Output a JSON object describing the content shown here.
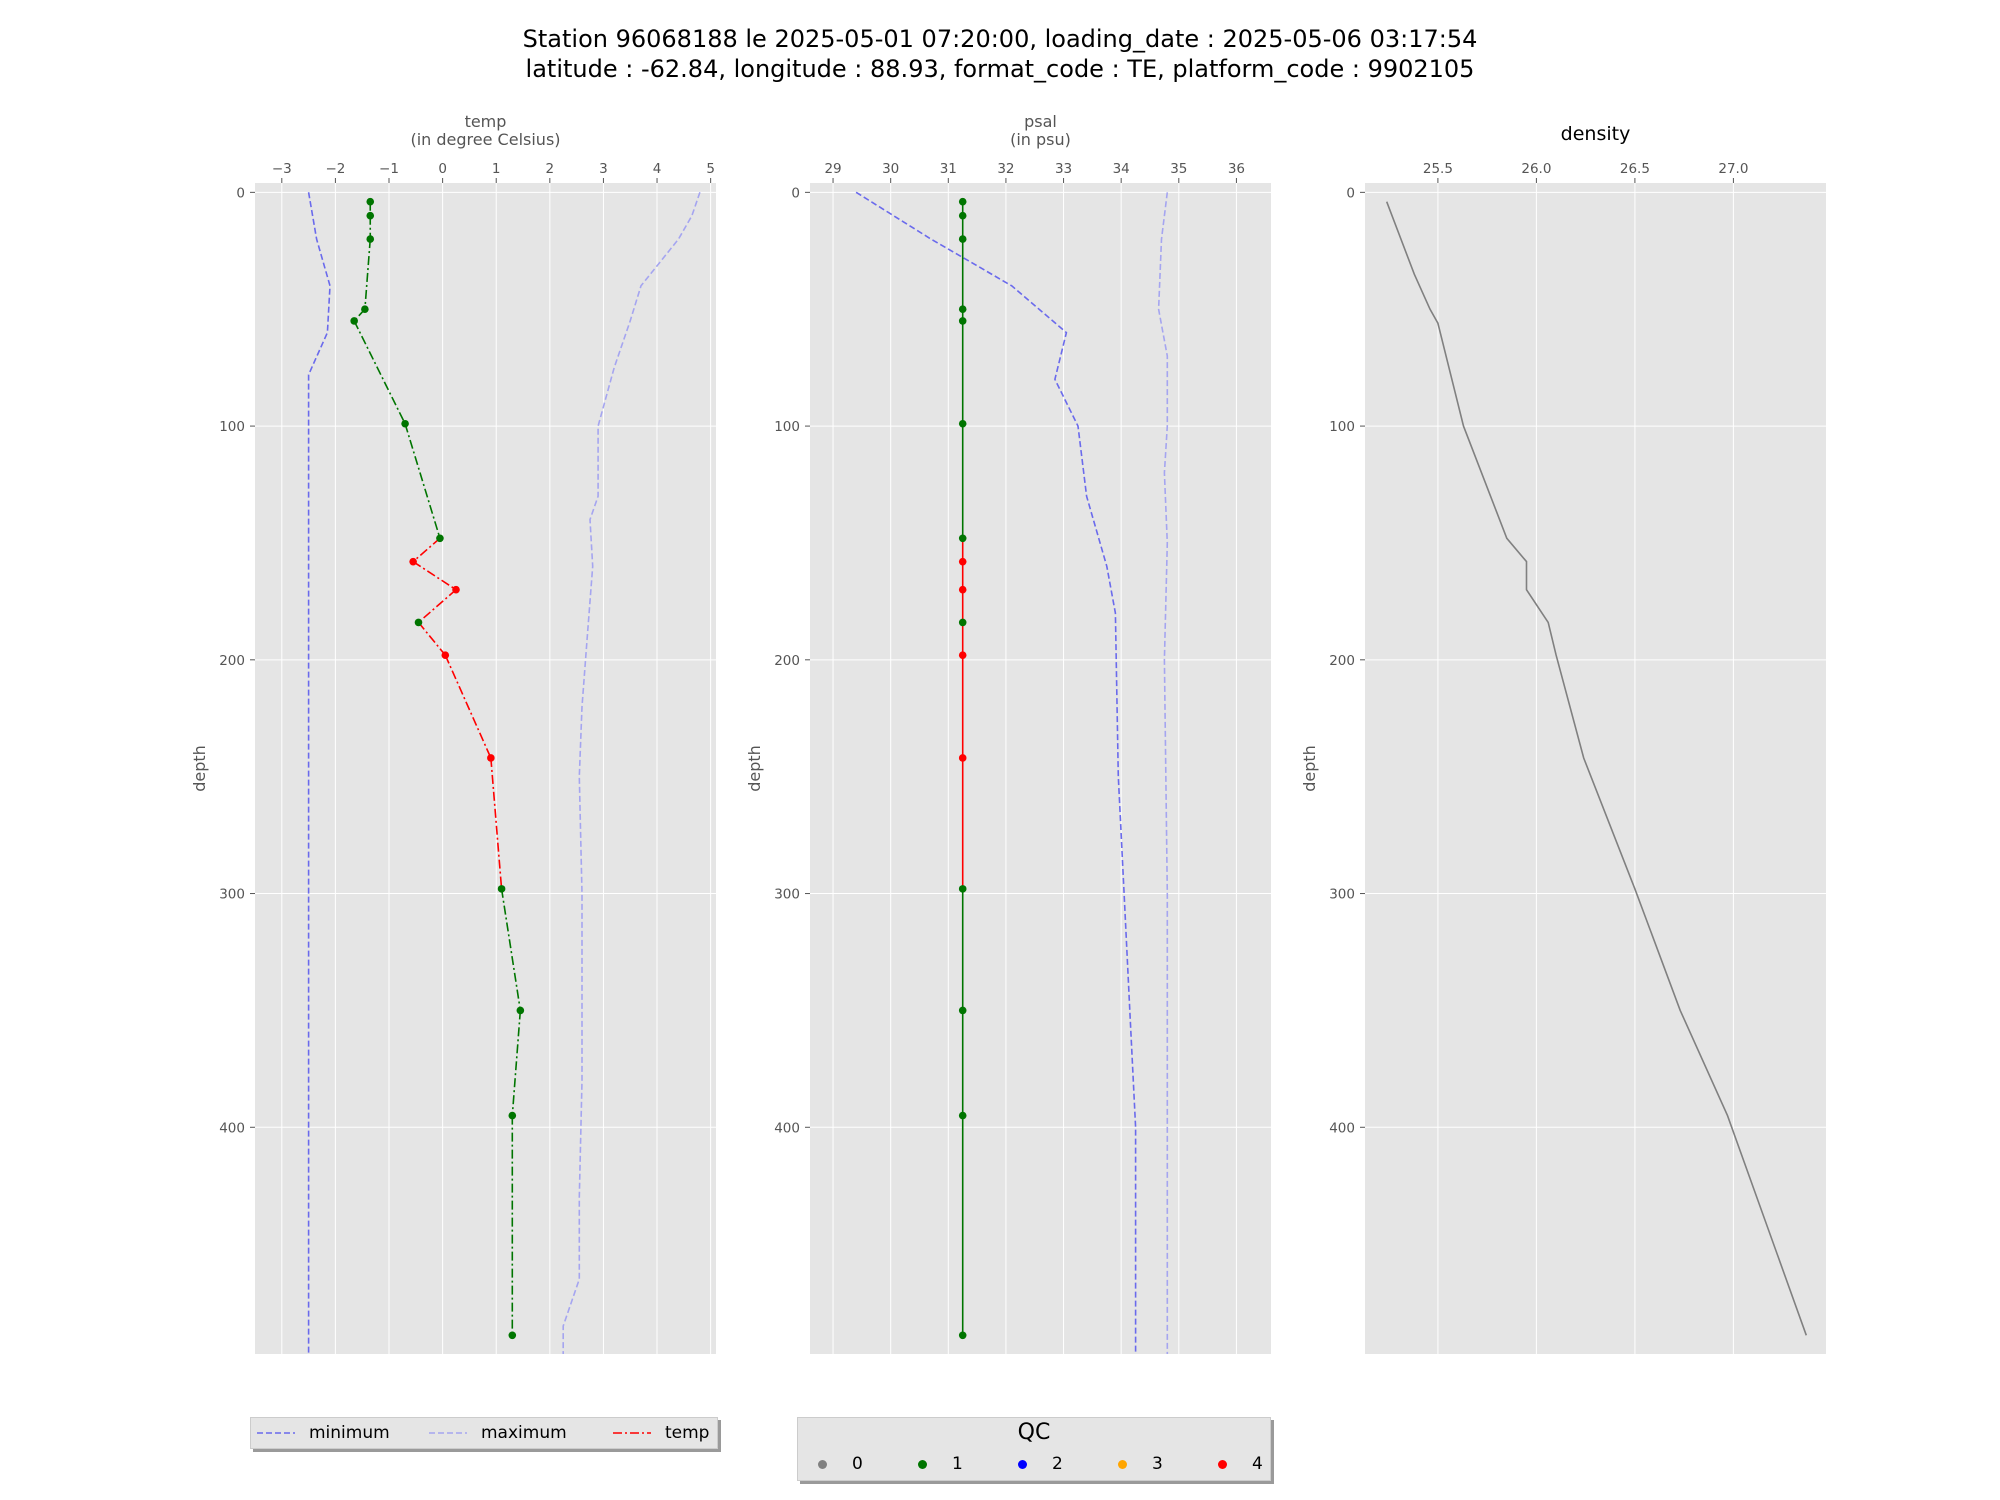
{
  "title": {
    "line1": "Station 96068188 le 2025-05-01 07:20:00, loading_date : 2025-05-06 03:17:54",
    "line2": "latitude : -62.84, longitude : 88.93, format_code : TE, platform_code : 9902105"
  },
  "colors": {
    "background": "#e5e5e5",
    "grid": "#ffffff",
    "minimum": "#6a6aec",
    "maximum": "#a5a5f0",
    "qc_0": "#808080",
    "qc_1": "#007500",
    "qc_2": "#0000ff",
    "qc_3": "#ffa500",
    "qc_4": "#ff0000",
    "density": "#808080"
  },
  "legend_series": {
    "minimum_label": "minimum",
    "maximum_label": "maximum",
    "temp_label": "temp"
  },
  "legend_qc": {
    "title": "QC",
    "items": [
      {
        "label": "0",
        "color": "#808080"
      },
      {
        "label": "1",
        "color": "#007500"
      },
      {
        "label": "2",
        "color": "#0000ff"
      },
      {
        "label": "3",
        "color": "#ffa500"
      },
      {
        "label": "4",
        "color": "#ff0000"
      }
    ]
  },
  "chart_data": [
    {
      "type": "line",
      "xlabel": "temp\n(in degree Celsius)",
      "ylabel": "depth",
      "xlim": [
        -3.5,
        5.1
      ],
      "ylim": [
        497,
        -4
      ],
      "y_inverted": true,
      "xticks": [
        -3,
        -2,
        -1,
        0,
        1,
        2,
        3,
        4,
        5
      ],
      "xtick_labels": [
        "−3",
        "−2",
        "−1",
        "0",
        "1",
        "2",
        "3",
        "4",
        "5"
      ],
      "yticks": [
        0,
        100,
        200,
        300,
        400
      ],
      "yticks_labels": [
        "0",
        "100",
        "200",
        "300",
        "400"
      ],
      "grid": true,
      "series": [
        {
          "name": "minimum",
          "style": "dashed",
          "points": [
            [
              -2.5,
              0
            ],
            [
              -2.35,
              20
            ],
            [
              -2.1,
              40
            ],
            [
              -2.15,
              60
            ],
            [
              -2.5,
              78
            ],
            [
              -2.5,
              100
            ],
            [
              -2.5,
              200
            ],
            [
              -2.5,
              300
            ],
            [
              -2.5,
              400
            ],
            [
              -2.5,
              497
            ]
          ]
        },
        {
          "name": "maximum",
          "style": "dashed",
          "points": [
            [
              4.8,
              0
            ],
            [
              4.65,
              10
            ],
            [
              4.4,
              20
            ],
            [
              3.7,
              40
            ],
            [
              3.5,
              55
            ],
            [
              3.2,
              75
            ],
            [
              2.9,
              100
            ],
            [
              2.9,
              130
            ],
            [
              2.75,
              140
            ],
            [
              2.8,
              160
            ],
            [
              2.7,
              190
            ],
            [
              2.6,
              220
            ],
            [
              2.55,
              250
            ],
            [
              2.6,
              300
            ],
            [
              2.6,
              380
            ],
            [
              2.55,
              430
            ],
            [
              2.55,
              465
            ],
            [
              2.25,
              485
            ],
            [
              2.25,
              497
            ]
          ]
        },
        {
          "name": "temp",
          "style": "dashdot",
          "qc_colored": true,
          "points": [
            [
              -1.35,
              4,
              1
            ],
            [
              -1.35,
              10,
              1
            ],
            [
              -1.35,
              20,
              1
            ],
            [
              -1.45,
              50,
              1
            ],
            [
              -1.65,
              55,
              1
            ],
            [
              -0.7,
              99,
              1
            ],
            [
              -0.05,
              148,
              1
            ],
            [
              -0.55,
              158,
              4
            ],
            [
              0.25,
              170,
              4
            ],
            [
              -0.45,
              184,
              1
            ],
            [
              0.05,
              198,
              4
            ],
            [
              0.9,
              242,
              4
            ],
            [
              1.1,
              298,
              1
            ],
            [
              1.45,
              350,
              1
            ],
            [
              1.3,
              395,
              1
            ],
            [
              1.3,
              489,
              1
            ]
          ]
        }
      ]
    },
    {
      "type": "line",
      "xlabel": "psal\n(in psu)",
      "ylabel": "depth",
      "xlim": [
        28.6,
        36.6
      ],
      "ylim": [
        497,
        -4
      ],
      "y_inverted": true,
      "xticks": [
        29,
        30,
        31,
        32,
        33,
        34,
        35,
        36
      ],
      "xtick_labels": [
        "29",
        "30",
        "31",
        "32",
        "33",
        "34",
        "35",
        "36"
      ],
      "yticks": [
        0,
        100,
        200,
        300,
        400
      ],
      "yticks_labels": [
        "0",
        "100",
        "200",
        "300",
        "400"
      ],
      "grid": true,
      "series": [
        {
          "name": "minimum",
          "style": "dashed",
          "points": [
            [
              29.4,
              0
            ],
            [
              30.7,
              20
            ],
            [
              32.1,
              40
            ],
            [
              33.05,
              60
            ],
            [
              32.85,
              80
            ],
            [
              33.25,
              100
            ],
            [
              33.4,
              130
            ],
            [
              33.75,
              160
            ],
            [
              33.9,
              180
            ],
            [
              33.95,
              250
            ],
            [
              34.05,
              300
            ],
            [
              34.15,
              350
            ],
            [
              34.25,
              400
            ],
            [
              34.25,
              497
            ]
          ]
        },
        {
          "name": "maximum",
          "style": "dashed",
          "points": [
            [
              34.8,
              0
            ],
            [
              34.7,
              20
            ],
            [
              34.65,
              50
            ],
            [
              34.8,
              70
            ],
            [
              34.8,
              100
            ],
            [
              34.75,
              120
            ],
            [
              34.8,
              150
            ],
            [
              34.75,
              200
            ],
            [
              34.8,
              300
            ],
            [
              34.8,
              400
            ],
            [
              34.8,
              497
            ]
          ]
        },
        {
          "name": "psal",
          "style": "solid",
          "qc_colored": true,
          "points": [
            [
              31.25,
              4,
              1
            ],
            [
              31.25,
              10,
              1
            ],
            [
              31.25,
              20,
              1
            ],
            [
              31.25,
              50,
              1
            ],
            [
              31.25,
              55,
              1
            ],
            [
              31.25,
              99,
              1
            ],
            [
              31.25,
              148,
              1
            ],
            [
              31.25,
              158,
              4
            ],
            [
              31.25,
              170,
              4
            ],
            [
              31.25,
              184,
              1
            ],
            [
              31.25,
              198,
              4
            ],
            [
              31.25,
              242,
              4
            ],
            [
              31.25,
              298,
              1
            ],
            [
              31.25,
              350,
              1
            ],
            [
              31.25,
              395,
              1
            ],
            [
              31.25,
              489,
              1
            ]
          ]
        }
      ]
    },
    {
      "type": "line",
      "title": "density",
      "ylabel": "depth",
      "xlim": [
        25.13,
        27.47
      ],
      "ylim": [
        497,
        -4
      ],
      "y_inverted": true,
      "xticks": [
        25.5,
        26.0,
        26.5,
        27.0
      ],
      "xtick_labels": [
        "25.5",
        "26.0",
        "26.5",
        "27.0"
      ],
      "yticks": [
        0,
        100,
        200,
        300,
        400
      ],
      "yticks_labels": [
        "0",
        "100",
        "200",
        "300",
        "400"
      ],
      "grid": true,
      "series": [
        {
          "name": "density",
          "style": "solid",
          "points": [
            [
              25.24,
              4
            ],
            [
              25.38,
              35
            ],
            [
              25.46,
              50
            ],
            [
              25.5,
              56
            ],
            [
              25.63,
              100
            ],
            [
              25.85,
              148
            ],
            [
              25.95,
              158
            ],
            [
              25.95,
              170
            ],
            [
              26.06,
              184
            ],
            [
              26.1,
              198
            ],
            [
              26.24,
              242
            ],
            [
              26.5,
              298
            ],
            [
              26.73,
              350
            ],
            [
              26.97,
              395
            ],
            [
              27.37,
              489
            ]
          ]
        }
      ]
    }
  ]
}
